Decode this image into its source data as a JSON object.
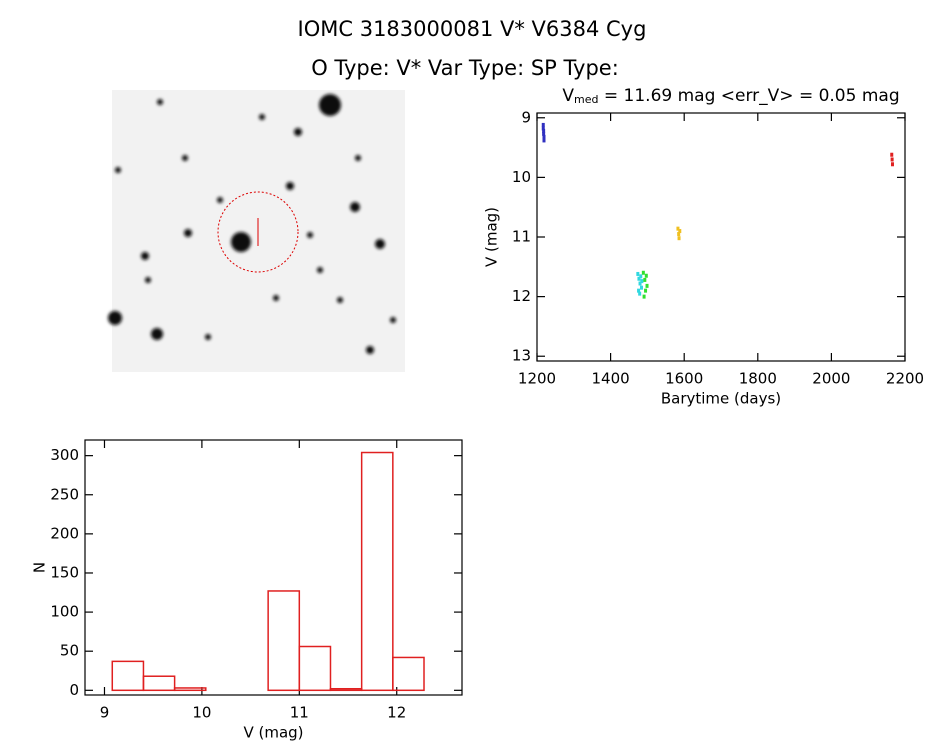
{
  "header": {
    "title": "IOMC 3183000081    V* V6384 Cyg",
    "subtitle": "O Type: V*  Var Type:   SP Type:"
  },
  "chart_data": [
    {
      "type": "scatter",
      "title": {
        "main": "V",
        "sub": "med",
        "rest": " = 11.69 mag <err_V> = 0.05 mag"
      },
      "x_label": "Barytime (days)",
      "y_label": "V (mag)",
      "xlim": [
        1200,
        2200
      ],
      "xticks": [
        1200,
        1400,
        1600,
        1800,
        2000,
        2200
      ],
      "ylim": [
        8.92,
        13.08
      ],
      "yticks": [
        9,
        10,
        11,
        12,
        13
      ],
      "invert_y": true,
      "series": [
        {
          "color": "#3030c0",
          "x": [
            1217,
            1217,
            1218,
            1218,
            1219,
            1219
          ],
          "values": [
            9.12,
            9.18,
            9.22,
            9.27,
            9.32,
            9.38
          ]
        },
        {
          "color": "#30d8e0",
          "x": [
            1474,
            1476,
            1477,
            1479,
            1480,
            1482,
            1484,
            1485
          ],
          "values": [
            11.62,
            11.9,
            11.7,
            11.95,
            11.78,
            11.66,
            11.85,
            11.74
          ]
        },
        {
          "color": "#30e030",
          "x": [
            1489,
            1491,
            1493,
            1495,
            1497,
            1499
          ],
          "values": [
            11.6,
            12.0,
            11.72,
            11.9,
            11.65,
            11.82
          ]
        },
        {
          "color": "#f0c020",
          "x": [
            1583,
            1585,
            1586,
            1588
          ],
          "values": [
            10.86,
            10.95,
            11.02,
            10.9
          ]
        },
        {
          "color": "#e02020",
          "x": [
            2164,
            2165,
            2166
          ],
          "values": [
            9.62,
            9.7,
            9.78
          ]
        }
      ]
    },
    {
      "type": "histogram",
      "x_label": "V (mag)",
      "y_label": "N",
      "bins": [
        9.08,
        9.4,
        9.72,
        10.04,
        10.36,
        10.68,
        11.0,
        11.32,
        11.64,
        11.96,
        12.28
      ],
      "values": [
        37,
        18,
        3,
        0,
        0,
        127,
        56,
        2,
        304,
        42
      ],
      "color": "#e02020",
      "xlim": [
        8.8,
        12.67
      ],
      "xticks": [
        9,
        10,
        11,
        12
      ],
      "ylim": [
        -6,
        320
      ],
      "yticks": [
        0,
        50,
        100,
        150,
        200,
        250,
        300
      ]
    }
  ]
}
